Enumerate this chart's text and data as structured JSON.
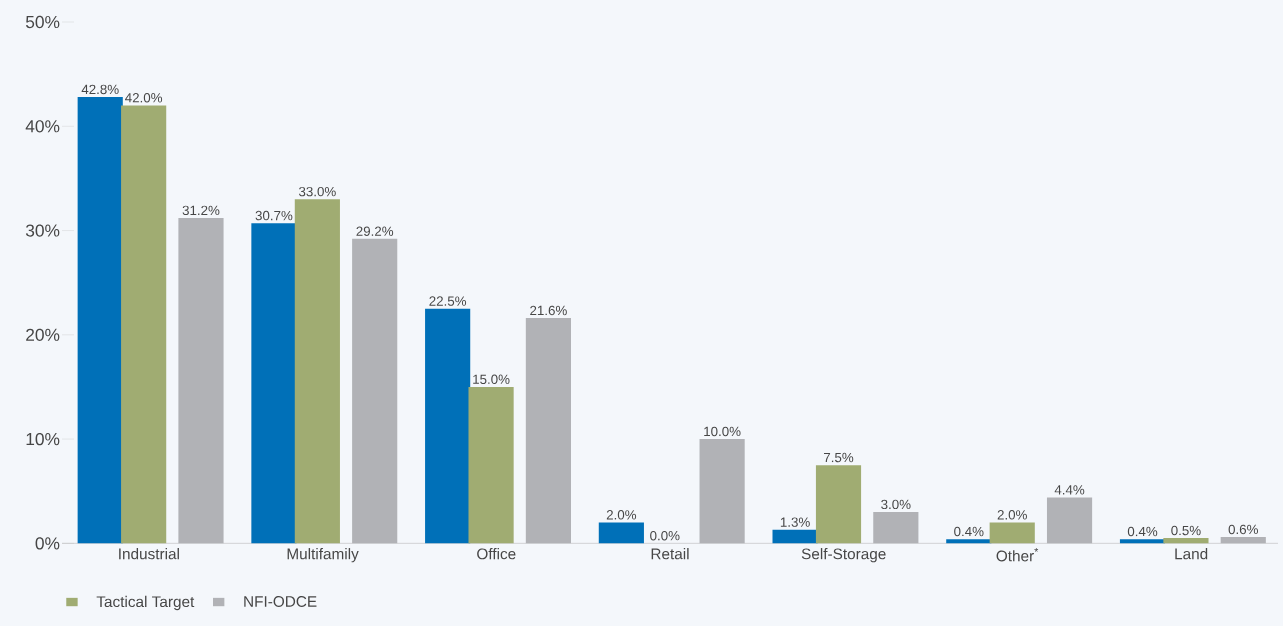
{
  "chart_data": {
    "type": "bar",
    "categories": [
      "Industrial",
      "Multifamily",
      "Office",
      "Retail",
      "Self-Storage",
      "Other$^{*}$",
      "Land"
    ],
    "series": [
      {
        "color": "#0070b8",
        "values": [
          42.8,
          30.7,
          22.5,
          2.0,
          1.3,
          0.4,
          0.4
        ],
        "value_labels": [
          "42.8%",
          "30.7%",
          "22.5%",
          "2.0%",
          "1.3%",
          "0.4%",
          "0.4%"
        ]
      },
      {
        "name": "Tactical Target",
        "color": "#a0ac72",
        "values": [
          42.0,
          33.0,
          15.0,
          0.0,
          7.5,
          2.0,
          0.5
        ],
        "value_labels": [
          "42.0%",
          "33.0%",
          "15.0%",
          "0.0%",
          "7.5%",
          "2.0%",
          "0.5%"
        ]
      },
      {
        "name": "NFI-ODCE",
        "color": "#b1b2b6",
        "values": [
          31.2,
          29.2,
          21.6,
          10.0,
          3.0,
          4.4,
          0.6
        ],
        "value_labels": [
          "31.2%",
          "29.2%",
          "21.6%",
          "10.0%",
          "3.0%",
          "4.4%",
          "0.6%"
        ]
      }
    ],
    "ylim": [
      0,
      50
    ],
    "yticks": [
      {
        "value": 0,
        "label": "0%"
      },
      {
        "value": 10,
        "label": "10%"
      },
      {
        "value": 20,
        "label": "20%"
      },
      {
        "value": 30,
        "label": "30%"
      },
      {
        "value": 40,
        "label": "40%"
      },
      {
        "value": 50,
        "label": "50%"
      }
    ],
    "legend": "bottom left",
    "grid": false
  }
}
